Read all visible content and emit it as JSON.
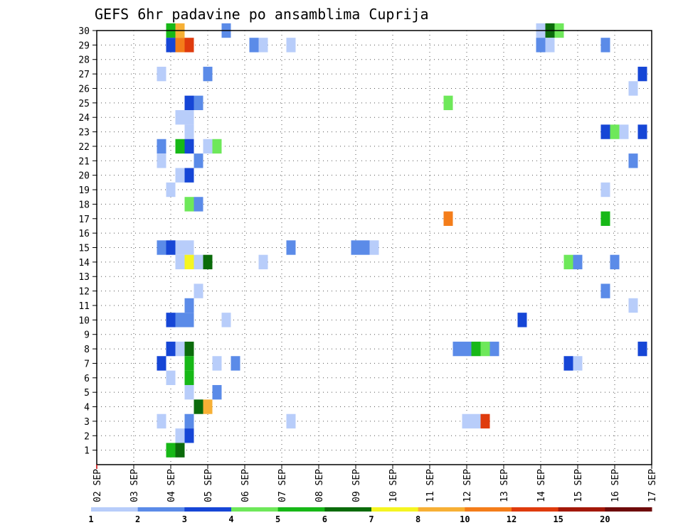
{
  "chart_data": {
    "type": "heatmap",
    "title": "GEFS 6hr padavine po ansamblima Cuprija",
    "xlabel": "",
    "ylabel": "",
    "x_tick_labels": [
      "02 SEP",
      "03 SEP",
      "04 SEP",
      "05 SEP",
      "06 SEP",
      "07 SEP",
      "08 SEP",
      "09 SEP",
      "10 SEP",
      "11 SEP",
      "12 SEP",
      "13 SEP",
      "14 SEP",
      "15 SEP",
      "16 SEP",
      "17 SEP"
    ],
    "x_range_hours": [
      0,
      360
    ],
    "time_step_hours": 6,
    "y_tick_labels": [
      "1",
      "2",
      "3",
      "4",
      "5",
      "6",
      "7",
      "8",
      "9",
      "10",
      "11",
      "12",
      "13",
      "14",
      "15",
      "16",
      "17",
      "18",
      "19",
      "20",
      "21",
      "22",
      "23",
      "24",
      "25",
      "26",
      "27",
      "28",
      "29",
      "30"
    ],
    "y_range": [
      0,
      30
    ],
    "grid": "dotted",
    "legend": {
      "placement": "bottom",
      "bin_labels": [
        "1",
        "2",
        "3",
        "4",
        "5",
        "6",
        "7",
        "8",
        "10",
        "12",
        "15",
        "20"
      ],
      "colors": [
        "#b8cdfa",
        "#5b8be8",
        "#1646d6",
        "#6ee85a",
        "#17b817",
        "#0b6b0b",
        "#f5f521",
        "#f7b035",
        "#f47d1a",
        "#df3b0d",
        "#a31809",
        "#6e0b0b"
      ]
    },
    "data_units": "class index (1 = lightest, 12 = darkest)",
    "cells": [
      {
        "member": 30,
        "hour": 48,
        "class": 5
      },
      {
        "member": 30,
        "hour": 54,
        "class": 8
      },
      {
        "member": 30,
        "hour": 84,
        "class": 2
      },
      {
        "member": 30,
        "hour": 288,
        "class": 1
      },
      {
        "member": 30,
        "hour": 294,
        "class": 6
      },
      {
        "member": 30,
        "hour": 300,
        "class": 4
      },
      {
        "member": 29,
        "hour": 48,
        "class": 3
      },
      {
        "member": 29,
        "hour": 54,
        "class": 9
      },
      {
        "member": 29,
        "hour": 60,
        "class": 10
      },
      {
        "member": 29,
        "hour": 102,
        "class": 2
      },
      {
        "member": 29,
        "hour": 108,
        "class": 1
      },
      {
        "member": 29,
        "hour": 126,
        "class": 1
      },
      {
        "member": 29,
        "hour": 288,
        "class": 2
      },
      {
        "member": 29,
        "hour": 294,
        "class": 1
      },
      {
        "member": 29,
        "hour": 330,
        "class": 2
      },
      {
        "member": 27,
        "hour": 42,
        "class": 1
      },
      {
        "member": 27,
        "hour": 72,
        "class": 2
      },
      {
        "member": 27,
        "hour": 354,
        "class": 3
      },
      {
        "member": 26,
        "hour": 348,
        "class": 1
      },
      {
        "member": 25,
        "hour": 60,
        "class": 3
      },
      {
        "member": 25,
        "hour": 66,
        "class": 2
      },
      {
        "member": 25,
        "hour": 228,
        "class": 4
      },
      {
        "member": 24,
        "hour": 54,
        "class": 1
      },
      {
        "member": 24,
        "hour": 60,
        "class": 1
      },
      {
        "member": 23,
        "hour": 60,
        "class": 1
      },
      {
        "member": 23,
        "hour": 330,
        "class": 3
      },
      {
        "member": 23,
        "hour": 336,
        "class": 4
      },
      {
        "member": 23,
        "hour": 342,
        "class": 1
      },
      {
        "member": 23,
        "hour": 354,
        "class": 3
      },
      {
        "member": 22,
        "hour": 42,
        "class": 2
      },
      {
        "member": 22,
        "hour": 54,
        "class": 5
      },
      {
        "member": 22,
        "hour": 60,
        "class": 3
      },
      {
        "member": 22,
        "hour": 72,
        "class": 1
      },
      {
        "member": 22,
        "hour": 78,
        "class": 4
      },
      {
        "member": 21,
        "hour": 42,
        "class": 1
      },
      {
        "member": 21,
        "hour": 66,
        "class": 2
      },
      {
        "member": 21,
        "hour": 348,
        "class": 2
      },
      {
        "member": 20,
        "hour": 54,
        "class": 1
      },
      {
        "member": 20,
        "hour": 60,
        "class": 3
      },
      {
        "member": 19,
        "hour": 48,
        "class": 1
      },
      {
        "member": 19,
        "hour": 330,
        "class": 1
      },
      {
        "member": 18,
        "hour": 60,
        "class": 4
      },
      {
        "member": 18,
        "hour": 66,
        "class": 2
      },
      {
        "member": 17,
        "hour": 228,
        "class": 9
      },
      {
        "member": 17,
        "hour": 330,
        "class": 5
      },
      {
        "member": 15,
        "hour": 42,
        "class": 2
      },
      {
        "member": 15,
        "hour": 48,
        "class": 3
      },
      {
        "member": 15,
        "hour": 54,
        "class": 1
      },
      {
        "member": 15,
        "hour": 60,
        "class": 1
      },
      {
        "member": 15,
        "hour": 126,
        "class": 2
      },
      {
        "member": 15,
        "hour": 168,
        "class": 2
      },
      {
        "member": 15,
        "hour": 174,
        "class": 2
      },
      {
        "member": 15,
        "hour": 180,
        "class": 1
      },
      {
        "member": 14,
        "hour": 54,
        "class": 1
      },
      {
        "member": 14,
        "hour": 60,
        "class": 7
      },
      {
        "member": 14,
        "hour": 66,
        "class": 1
      },
      {
        "member": 14,
        "hour": 72,
        "class": 6
      },
      {
        "member": 14,
        "hour": 108,
        "class": 1
      },
      {
        "member": 14,
        "hour": 306,
        "class": 4
      },
      {
        "member": 14,
        "hour": 312,
        "class": 2
      },
      {
        "member": 14,
        "hour": 336,
        "class": 2
      },
      {
        "member": 12,
        "hour": 66,
        "class": 1
      },
      {
        "member": 12,
        "hour": 330,
        "class": 2
      },
      {
        "member": 11,
        "hour": 60,
        "class": 2
      },
      {
        "member": 11,
        "hour": 348,
        "class": 1
      },
      {
        "member": 10,
        "hour": 48,
        "class": 3
      },
      {
        "member": 10,
        "hour": 54,
        "class": 2
      },
      {
        "member": 10,
        "hour": 60,
        "class": 2
      },
      {
        "member": 10,
        "hour": 84,
        "class": 1
      },
      {
        "member": 10,
        "hour": 276,
        "class": 3
      },
      {
        "member": 8,
        "hour": 48,
        "class": 3
      },
      {
        "member": 8,
        "hour": 54,
        "class": 1
      },
      {
        "member": 8,
        "hour": 60,
        "class": 6
      },
      {
        "member": 8,
        "hour": 234,
        "class": 2
      },
      {
        "member": 8,
        "hour": 240,
        "class": 2
      },
      {
        "member": 8,
        "hour": 246,
        "class": 5
      },
      {
        "member": 8,
        "hour": 252,
        "class": 4
      },
      {
        "member": 8,
        "hour": 258,
        "class": 2
      },
      {
        "member": 8,
        "hour": 354,
        "class": 3
      },
      {
        "member": 7,
        "hour": 42,
        "class": 3
      },
      {
        "member": 7,
        "hour": 60,
        "class": 5
      },
      {
        "member": 7,
        "hour": 78,
        "class": 1
      },
      {
        "member": 7,
        "hour": 90,
        "class": 2
      },
      {
        "member": 7,
        "hour": 306,
        "class": 3
      },
      {
        "member": 7,
        "hour": 312,
        "class": 1
      },
      {
        "member": 6,
        "hour": 48,
        "class": 1
      },
      {
        "member": 6,
        "hour": 60,
        "class": 5
      },
      {
        "member": 5,
        "hour": 60,
        "class": 1
      },
      {
        "member": 5,
        "hour": 78,
        "class": 2
      },
      {
        "member": 4,
        "hour": 66,
        "class": 6
      },
      {
        "member": 4,
        "hour": 72,
        "class": 8
      },
      {
        "member": 3,
        "hour": 42,
        "class": 1
      },
      {
        "member": 3,
        "hour": 60,
        "class": 2
      },
      {
        "member": 3,
        "hour": 126,
        "class": 1
      },
      {
        "member": 3,
        "hour": 240,
        "class": 1
      },
      {
        "member": 3,
        "hour": 246,
        "class": 1
      },
      {
        "member": 3,
        "hour": 252,
        "class": 10
      },
      {
        "member": 2,
        "hour": 54,
        "class": 1
      },
      {
        "member": 2,
        "hour": 60,
        "class": 3
      },
      {
        "member": 1,
        "hour": 48,
        "class": 5
      },
      {
        "member": 1,
        "hour": 54,
        "class": 6
      }
    ]
  }
}
